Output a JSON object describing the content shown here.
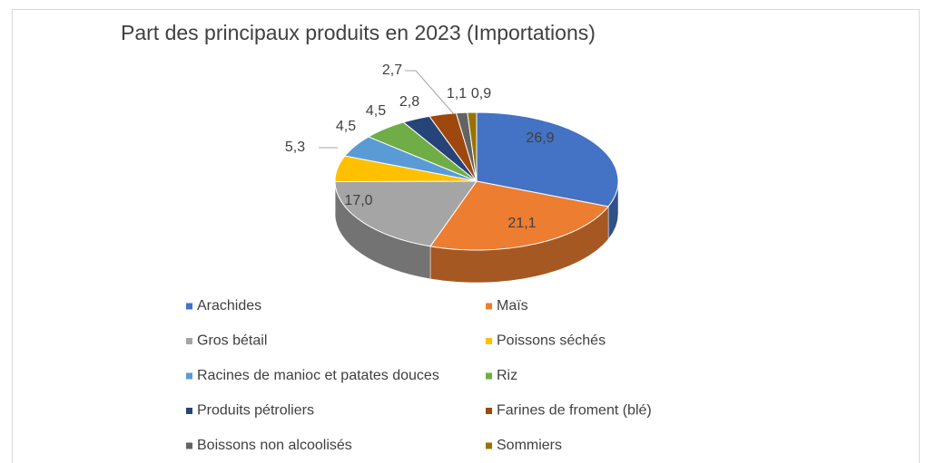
{
  "chart_data": {
    "type": "pie",
    "title": "Part des principaux produits en 2023 (Importations)",
    "categories": [
      "Arachides",
      "Maïs",
      "Gros bétail",
      "Poissons séchés",
      "Racines de manioc et patates douces",
      "Riz",
      "Produits pétroliers",
      "Farines de froment (blé)",
      "Boissons non alcoolisés",
      "Sommiers"
    ],
    "values": [
      26.9,
      21.1,
      17.0,
      5.3,
      4.5,
      4.5,
      2.8,
      2.7,
      1.1,
      0.9
    ],
    "value_labels": [
      "26,9",
      "21,1",
      "17,0",
      "5,3",
      "4,5",
      "4,5",
      "2,8",
      "2,7",
      "1,1",
      "0,9"
    ],
    "colors": [
      "#4472c4",
      "#ed7d31",
      "#a5a5a5",
      "#ffc000",
      "#5b9bd5",
      "#70ad47",
      "#264478",
      "#9e480e",
      "#636363",
      "#997300"
    ],
    "legend": "bottom"
  }
}
